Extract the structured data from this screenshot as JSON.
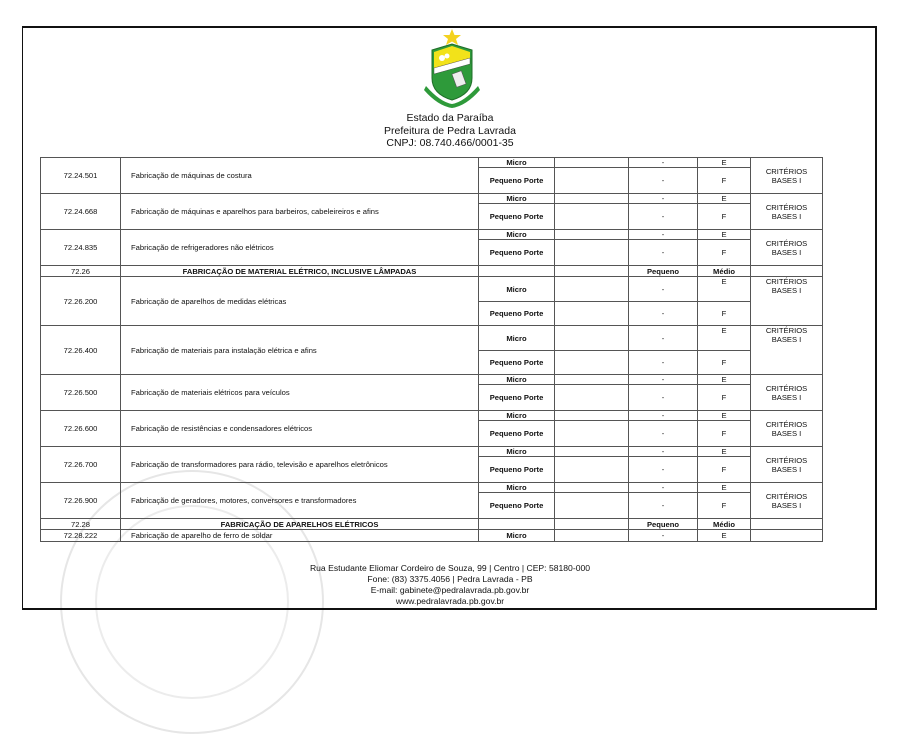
{
  "header": {
    "state": "Estado da Paraíba",
    "city": "Prefeitura de Pedra Lavrada",
    "cnpj": "CNPJ: 08.740.466/0001-35",
    "logo_text": "PEDRA LAVRADA"
  },
  "colors": {
    "logo_green": "#2e9a3a",
    "logo_yellow": "#f2e21a",
    "star": "#f4d21f"
  },
  "table": {
    "rows": [
      {
        "type": "group",
        "size": "compact",
        "code": "72.24.501",
        "desc": "Fabricação de máquinas de costura",
        "micro": {
          "porte": "Micro",
          "c3": "",
          "c4": "-",
          "c5": "E"
        },
        "pequeno": {
          "porte": "Pequeno Porte",
          "c3": "",
          "c4": "-",
          "c5": "F"
        },
        "criteria": "CRITÉRIOS BASES I"
      },
      {
        "type": "group",
        "size": "compact",
        "code": "72.24.668",
        "desc": "Fabricação de máquinas e aparelhos para barbeiros, cabeleireiros e afins",
        "micro": {
          "porte": "Micro",
          "c3": "",
          "c4": "-",
          "c5": "E"
        },
        "pequeno": {
          "porte": "Pequeno Porte",
          "c3": "",
          "c4": "-",
          "c5": "F"
        },
        "criteria": "CRITÉRIOS BASES I"
      },
      {
        "type": "group",
        "size": "compact",
        "code": "72.24.835",
        "desc": "Fabricação de refrigeradores não elétricos",
        "micro": {
          "porte": "Micro",
          "c3": "",
          "c4": "-",
          "c5": "E"
        },
        "pequeno": {
          "porte": "Pequeno Porte",
          "c3": "",
          "c4": "-",
          "c5": "F"
        },
        "criteria": "CRITÉRIOS BASES I"
      },
      {
        "type": "section",
        "code": "72.26",
        "title": "FABRICAÇÃO DE MATERIAL ELÉTRICO, INCLUSIVE LÂMPADAS",
        "c4": "Pequeno",
        "c5": "Médio"
      },
      {
        "type": "group",
        "size": "tall",
        "code": "72.26.200",
        "desc": "Fabricação de aparelhos de medidas elétricas",
        "micro": {
          "porte": "Micro",
          "c3": "",
          "c4": "-",
          "c5": "E"
        },
        "pequeno": {
          "porte": "Pequeno Porte",
          "c3": "",
          "c4": "-",
          "c5": "F"
        },
        "criteria": "CRITÉRIOS BASES I"
      },
      {
        "type": "group",
        "size": "tall",
        "code": "72.26.400",
        "desc": "Fabricação de materiais para instalação elétrica e afins",
        "micro": {
          "porte": "Micro",
          "c3": "",
          "c4": "-",
          "c5": "E"
        },
        "pequeno": {
          "porte": "Pequeno Porte",
          "c3": "",
          "c4": "-",
          "c5": "F"
        },
        "criteria": "CRITÉRIOS BASES I"
      },
      {
        "type": "group",
        "size": "compact",
        "code": "72.26.500",
        "desc": "Fabricação de materiais elétricos para veículos",
        "micro": {
          "porte": "Micro",
          "c3": "",
          "c4": "-",
          "c5": "E"
        },
        "pequeno": {
          "porte": "Pequeno Porte",
          "c3": "",
          "c4": "-",
          "c5": "F"
        },
        "criteria": "CRITÉRIOS BASES I"
      },
      {
        "type": "group",
        "size": "compact",
        "code": "72.26.600",
        "desc": "Fabricação de resistências e condensadores elétricos",
        "micro": {
          "porte": "Micro",
          "c3": "",
          "c4": "-",
          "c5": "E"
        },
        "pequeno": {
          "porte": "Pequeno Porte",
          "c3": "",
          "c4": "-",
          "c5": "F"
        },
        "criteria": "CRITÉRIOS BASES I"
      },
      {
        "type": "group",
        "size": "compact",
        "code": "72.26.700",
        "desc": "Fabricação de transformadores para rádio, televisão e aparelhos eletrônicos",
        "micro": {
          "porte": "Micro",
          "c3": "",
          "c4": "-",
          "c5": "E"
        },
        "pequeno": {
          "porte": "Pequeno Porte",
          "c3": "",
          "c4": "-",
          "c5": "F"
        },
        "criteria": "CRITÉRIOS BASES I"
      },
      {
        "type": "group",
        "size": "compact",
        "code": "72.26.900",
        "desc": "Fabricação de geradores, motores, conversores e transformadores",
        "micro": {
          "porte": "Micro",
          "c3": "",
          "c4": "-",
          "c5": "E"
        },
        "pequeno": {
          "porte": "Pequeno Porte",
          "c3": "",
          "c4": "-",
          "c5": "F"
        },
        "criteria": "CRITÉRIOS BASES I"
      },
      {
        "type": "section",
        "code": "72.28",
        "title": "FABRICAÇÃO DE APARELHOS ELÉTRICOS",
        "c4": "Pequeno",
        "c5": "Médio"
      },
      {
        "type": "single",
        "code": "72.28.222",
        "desc": "Fabricação de aparelho de ferro de soldar",
        "porte": "Micro",
        "c3": "",
        "c4": "-",
        "c5": "E",
        "criteria": ""
      }
    ]
  },
  "footer": {
    "address": "Rua Estudante Eliomar Cordeiro de Souza, 99 | Centro | CEP: 58180-000",
    "phone": "Fone: (83) 3375.4056 | Pedra Lavrada - PB",
    "email": "E-mail: gabinete@pedralavrada.pb.gov.br",
    "site": "www.pedralavrada.pb.gov.br"
  }
}
